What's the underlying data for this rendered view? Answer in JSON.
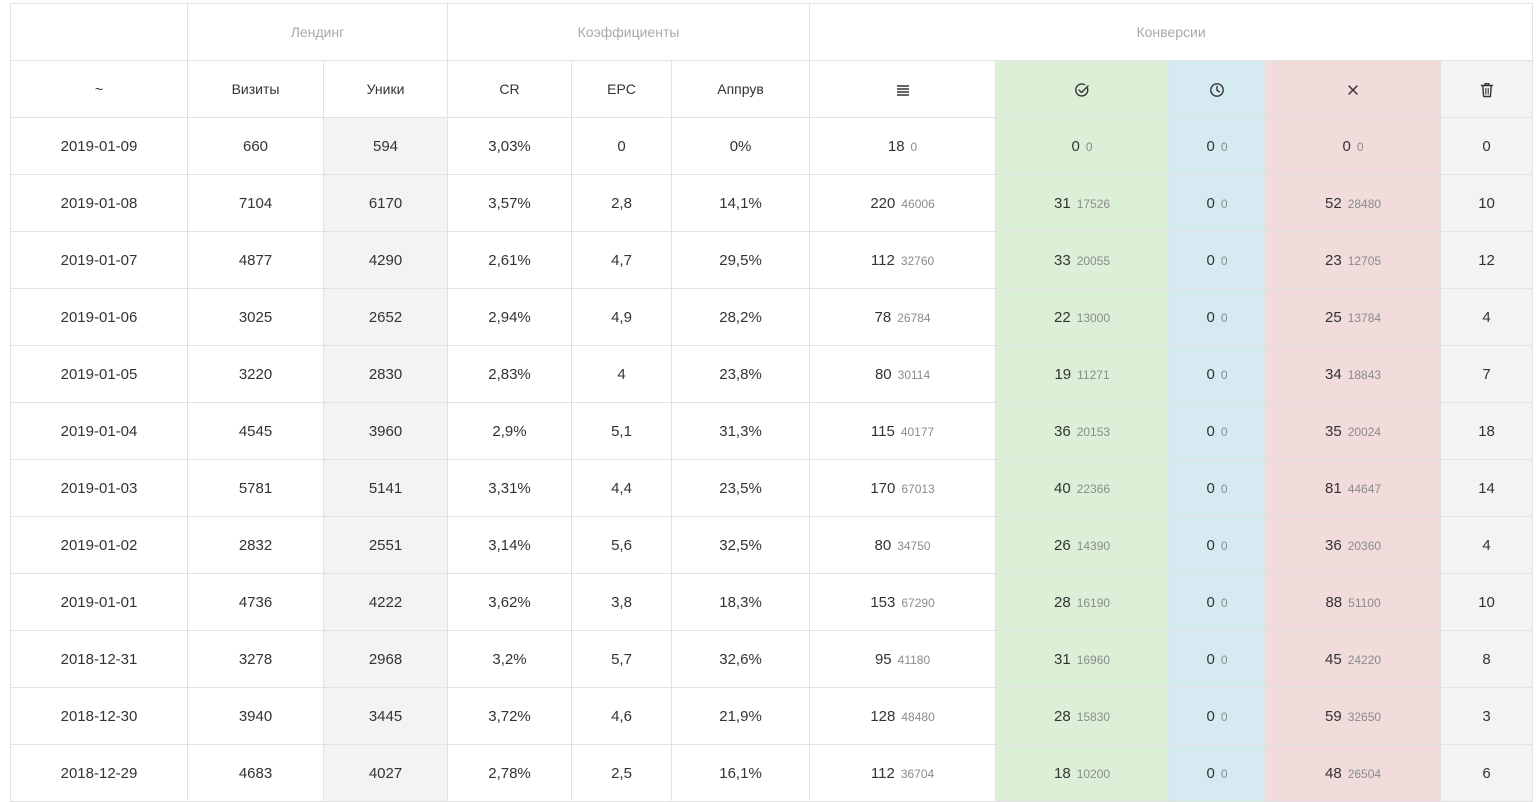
{
  "groups": {
    "landing": "Лендинг",
    "coefficients": "Коэффициенты",
    "conversions": "Конверсии"
  },
  "headers": {
    "date": "~",
    "visits": "Визиты",
    "uniques": "Уники",
    "cr": "CR",
    "epc": "EPC",
    "approve": "Аппрув"
  },
  "header_icons": [
    "list-icon",
    "check-circle-icon",
    "clock-icon",
    "close-icon",
    "trash-icon"
  ],
  "colors": {
    "approved_bg": "#dcf0d7",
    "hold_bg": "#d6eaf1",
    "rejected_bg": "#f1dbdb",
    "neutral_bg": "#f3f3f3"
  },
  "rows": [
    {
      "date": "2019-01-09",
      "visits": "660",
      "uniques": "594",
      "cr": "3,03%",
      "epc": "0",
      "approve": "0%",
      "total": "18",
      "total_sum": "0",
      "approved": "0",
      "approved_sum": "0",
      "hold": "0",
      "hold_sum": "0",
      "rejected": "0",
      "rejected_sum": "0",
      "trash": "0"
    },
    {
      "date": "2019-01-08",
      "visits": "7104",
      "uniques": "6170",
      "cr": "3,57%",
      "epc": "2,8",
      "approve": "14,1%",
      "total": "220",
      "total_sum": "46006",
      "approved": "31",
      "approved_sum": "17526",
      "hold": "0",
      "hold_sum": "0",
      "rejected": "52",
      "rejected_sum": "28480",
      "trash": "10"
    },
    {
      "date": "2019-01-07",
      "visits": "4877",
      "uniques": "4290",
      "cr": "2,61%",
      "epc": "4,7",
      "approve": "29,5%",
      "total": "112",
      "total_sum": "32760",
      "approved": "33",
      "approved_sum": "20055",
      "hold": "0",
      "hold_sum": "0",
      "rejected": "23",
      "rejected_sum": "12705",
      "trash": "12"
    },
    {
      "date": "2019-01-06",
      "visits": "3025",
      "uniques": "2652",
      "cr": "2,94%",
      "epc": "4,9",
      "approve": "28,2%",
      "total": "78",
      "total_sum": "26784",
      "approved": "22",
      "approved_sum": "13000",
      "hold": "0",
      "hold_sum": "0",
      "rejected": "25",
      "rejected_sum": "13784",
      "trash": "4"
    },
    {
      "date": "2019-01-05",
      "visits": "3220",
      "uniques": "2830",
      "cr": "2,83%",
      "epc": "4",
      "approve": "23,8%",
      "total": "80",
      "total_sum": "30114",
      "approved": "19",
      "approved_sum": "11271",
      "hold": "0",
      "hold_sum": "0",
      "rejected": "34",
      "rejected_sum": "18843",
      "trash": "7"
    },
    {
      "date": "2019-01-04",
      "visits": "4545",
      "uniques": "3960",
      "cr": "2,9%",
      "epc": "5,1",
      "approve": "31,3%",
      "total": "115",
      "total_sum": "40177",
      "approved": "36",
      "approved_sum": "20153",
      "hold": "0",
      "hold_sum": "0",
      "rejected": "35",
      "rejected_sum": "20024",
      "trash": "18"
    },
    {
      "date": "2019-01-03",
      "visits": "5781",
      "uniques": "5141",
      "cr": "3,31%",
      "epc": "4,4",
      "approve": "23,5%",
      "total": "170",
      "total_sum": "67013",
      "approved": "40",
      "approved_sum": "22366",
      "hold": "0",
      "hold_sum": "0",
      "rejected": "81",
      "rejected_sum": "44647",
      "trash": "14"
    },
    {
      "date": "2019-01-02",
      "visits": "2832",
      "uniques": "2551",
      "cr": "3,14%",
      "epc": "5,6",
      "approve": "32,5%",
      "total": "80",
      "total_sum": "34750",
      "approved": "26",
      "approved_sum": "14390",
      "hold": "0",
      "hold_sum": "0",
      "rejected": "36",
      "rejected_sum": "20360",
      "trash": "4"
    },
    {
      "date": "2019-01-01",
      "visits": "4736",
      "uniques": "4222",
      "cr": "3,62%",
      "epc": "3,8",
      "approve": "18,3%",
      "total": "153",
      "total_sum": "67290",
      "approved": "28",
      "approved_sum": "16190",
      "hold": "0",
      "hold_sum": "0",
      "rejected": "88",
      "rejected_sum": "51100",
      "trash": "10"
    },
    {
      "date": "2018-12-31",
      "visits": "3278",
      "uniques": "2968",
      "cr": "3,2%",
      "epc": "5,7",
      "approve": "32,6%",
      "total": "95",
      "total_sum": "41180",
      "approved": "31",
      "approved_sum": "16960",
      "hold": "0",
      "hold_sum": "0",
      "rejected": "45",
      "rejected_sum": "24220",
      "trash": "8"
    },
    {
      "date": "2018-12-30",
      "visits": "3940",
      "uniques": "3445",
      "cr": "3,72%",
      "epc": "4,6",
      "approve": "21,9%",
      "total": "128",
      "total_sum": "48480",
      "approved": "28",
      "approved_sum": "15830",
      "hold": "0",
      "hold_sum": "0",
      "rejected": "59",
      "rejected_sum": "32650",
      "trash": "3"
    },
    {
      "date": "2018-12-29",
      "visits": "4683",
      "uniques": "4027",
      "cr": "2,78%",
      "epc": "2,5",
      "approve": "16,1%",
      "total": "112",
      "total_sum": "36704",
      "approved": "18",
      "approved_sum": "10200",
      "hold": "0",
      "hold_sum": "0",
      "rejected": "48",
      "rejected_sum": "26504",
      "trash": "6"
    }
  ]
}
